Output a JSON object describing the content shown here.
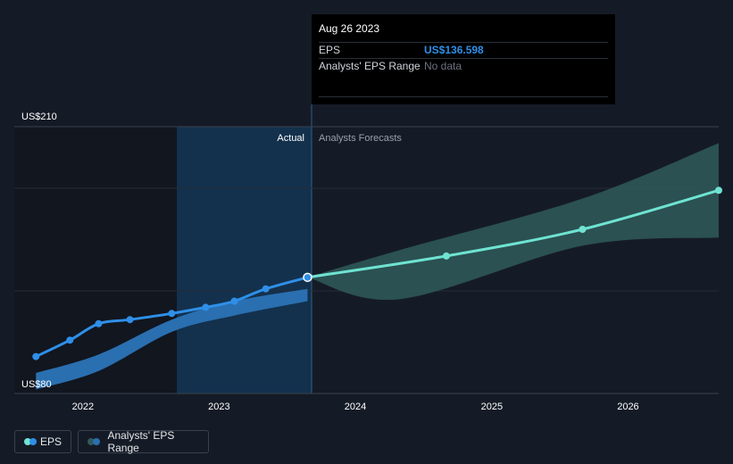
{
  "tooltip": {
    "date": "Aug 26 2023",
    "eps_label": "EPS",
    "eps_value": "US$136.598",
    "range_label": "Analysts' EPS Range",
    "range_value": "No data"
  },
  "labels": {
    "actual": "Actual",
    "forecast": "Analysts Forecasts"
  },
  "legend": {
    "eps": "EPS",
    "range": "Analysts' EPS Range"
  },
  "colors": {
    "background": "#151b26",
    "eps_actual": "#2f8fe8",
    "eps_forecast": "#6fe3d2",
    "range_actual": "#2a6fb0",
    "range_forecast": "#2f5b5a",
    "highlight": "#13314d"
  },
  "chart_data": {
    "type": "line",
    "x_ticks": [
      "2022",
      "2023",
      "2024",
      "2025",
      "2026"
    ],
    "y_ticks": [
      "US$80",
      "US$210"
    ],
    "ylim": [
      80,
      210
    ],
    "series": [
      {
        "name": "EPS",
        "x": [
          "2021-08-28",
          "2021-11-27",
          "2022-02-12",
          "2022-05-07",
          "2022-08-27",
          "2022-11-26",
          "2023-02-11",
          "2023-05-06",
          "2023-08-26"
        ],
        "y": [
          98,
          106,
          114,
          116,
          119,
          122,
          125,
          131,
          136.6
        ]
      },
      {
        "name": "EPS",
        "x": [
          "2023-08-26",
          "2024-09-01",
          "2025-09-01",
          "2026-09-01"
        ],
        "y": [
          136.6,
          147,
          160,
          179
        ]
      }
    ],
    "range_actual": {
      "x": [
        "2021-08-28",
        "2022-02-12",
        "2022-08-27",
        "2023-02-11",
        "2023-08-26"
      ],
      "low": [
        82,
        91,
        110,
        118,
        125
      ],
      "high": [
        90,
        99,
        116,
        125,
        131
      ]
    },
    "range_forecast": {
      "x": [
        "2023-08-26",
        "2024-05-01",
        "2025-09-01",
        "2026-09-01"
      ],
      "low": [
        136.6,
        126,
        152,
        156
      ],
      "high": [
        136.6,
        150,
        175,
        202
      ]
    }
  }
}
